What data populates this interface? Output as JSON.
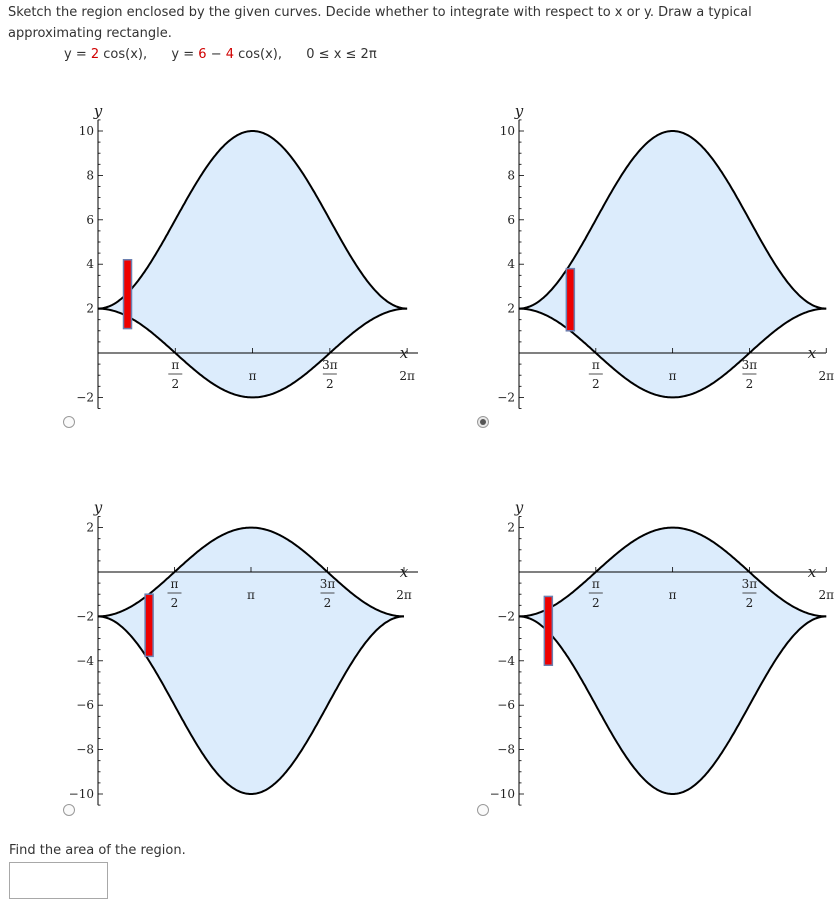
{
  "question": {
    "prompt": "Sketch the region enclosed by the given curves. Decide whether to integrate with respect to x or y. Draw a typical approximating rectangle.",
    "curve1_lhs": "y =",
    "curve1_coef": "2",
    "curve1_rest": "cos(x),",
    "curve2_lhs": "y =",
    "curve2_const": "6",
    "curve2_op": "−",
    "curve2_coef": "4",
    "curve2_rest": "cos(x),",
    "domain": "0 ≤ x ≤ 2π"
  },
  "options": [
    {
      "selected": false,
      "chart_data": {
        "type": "area",
        "curves": [
          "y = 2cos(x)",
          "y = 6 - 4cos(x)"
        ],
        "xlim": [
          0,
          6.283
        ],
        "ylim": [
          -2.5,
          10.5
        ],
        "xlabel": "x",
        "ylabel": "y",
        "yticks": [
          "10",
          "8",
          "6",
          "4",
          "2",
          "−2"
        ],
        "xticks": [
          "π/2",
          "π",
          "3π/2",
          "2π"
        ],
        "rectangle": {
          "x": 0.6,
          "y_bottom": 1.1,
          "y_top": 4.2
        }
      }
    },
    {
      "selected": true,
      "chart_data": {
        "type": "area",
        "curves": [
          "y = 6 - 4cos(x)",
          "y = 2cos(x)"
        ],
        "xlim": [
          0,
          6.283
        ],
        "ylim": [
          -2.5,
          10.5
        ],
        "xlabel": "x",
        "ylabel": "y",
        "yticks": [
          "10",
          "8",
          "6",
          "4",
          "2",
          "−2"
        ],
        "xticks": [
          "π/2",
          "π",
          "3π/2",
          "2π"
        ],
        "rectangle": {
          "x": 1.05,
          "y_bottom": 1.0,
          "y_top": 3.8
        }
      }
    },
    {
      "selected": false,
      "chart_data": {
        "type": "area",
        "curves": [
          "y = -2cos(x)",
          "y = -(6 - 4cos(x))"
        ],
        "xlim": [
          0,
          6.283
        ],
        "ylim": [
          -10.5,
          2.5
        ],
        "xlabel": "x",
        "ylabel": "y",
        "yticks": [
          "2",
          "−2",
          "−4",
          "−6",
          "−8",
          "−10"
        ],
        "xticks": [
          "π/2",
          "π",
          "3π/2",
          "2π"
        ],
        "rectangle": {
          "x": 1.05,
          "y_bottom": -3.8,
          "y_top": -1.0
        }
      }
    },
    {
      "selected": false,
      "chart_data": {
        "type": "area",
        "curves": [
          "y = -2cos(x)",
          "y = -(6 - 4cos(x))"
        ],
        "xlim": [
          0,
          6.283
        ],
        "ylim": [
          -10.5,
          2.5
        ],
        "xlabel": "x",
        "ylabel": "y",
        "yticks": [
          "2",
          "−2",
          "−4",
          "−6",
          "−8",
          "−10"
        ],
        "xticks": [
          "π/2",
          "π",
          "3π/2",
          "2π"
        ],
        "rectangle": {
          "x": 0.6,
          "y_bottom": -4.2,
          "y_top": -1.1
        }
      }
    }
  ],
  "area_prompt": "Find the area of the region.",
  "answer_value": "",
  "colors": {
    "fill": "#dcecfc",
    "curve": "#000000",
    "rect_fill": "#ee0000",
    "rect_edge": "#6b7fb0"
  }
}
